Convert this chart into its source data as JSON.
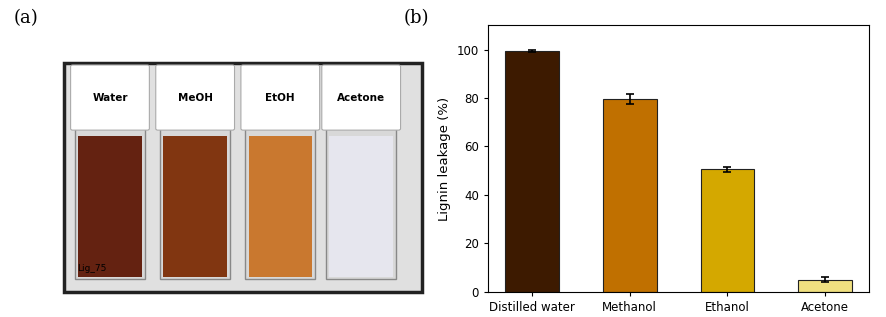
{
  "categories": [
    "Distilled water",
    "Methanol",
    "Ethanol",
    "Acetone"
  ],
  "values": [
    99.5,
    79.5,
    50.5,
    5.0
  ],
  "errors": [
    0.5,
    2.0,
    1.0,
    1.0
  ],
  "bar_colors": [
    "#3d1a00",
    "#c07000",
    "#d4a800",
    "#f0e080"
  ],
  "ylabel": "Lignin leakage (%)",
  "ylim": [
    0,
    110
  ],
  "yticks": [
    0,
    20,
    40,
    60,
    80,
    100
  ],
  "panel_a_label": "(a)",
  "panel_b_label": "(b)",
  "background_color": "#ffffff",
  "bar_width": 0.55,
  "bar_edge_color": "#222222",
  "bar_edge_width": 0.8,
  "error_cap_size": 3,
  "error_color": "black",
  "photo_labels": [
    "Water",
    "MeOH",
    "EtOH",
    "Acetone"
  ],
  "photo_sublabel": "Lig_75",
  "liquid_colors": [
    "#5a1200",
    "#7a2800",
    "#c87020",
    "#e8e8f0"
  ],
  "vial_bg": "#c8c8c8",
  "photo_bg": "#d8d8d8",
  "photo_border": "#222222"
}
